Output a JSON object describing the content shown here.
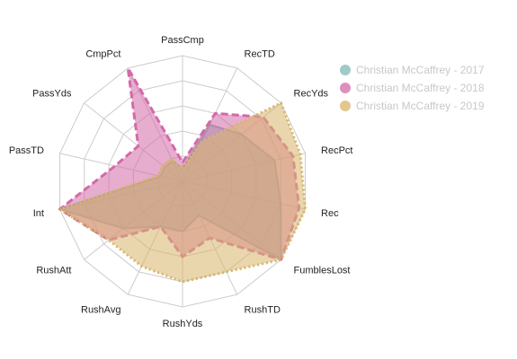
{
  "chart_data": {
    "type": "radar",
    "axes": [
      "PassCmp",
      "RecTD",
      "RecYds",
      "RecPct",
      "Rec",
      "FumblesLost",
      "RushTD",
      "RushYds",
      "RushAvg",
      "RushAtt",
      "Int",
      "PassTD",
      "PassYds",
      "CmpPct"
    ],
    "rmax": 1.0,
    "grid_levels": 5,
    "series": [
      {
        "name": "Christian McCaffrey - 2017",
        "color": "#7fb8b4",
        "fill_opacity": 0.55,
        "line_style": "solid",
        "values": [
          0.1,
          0.5,
          0.6,
          0.75,
          0.8,
          1.0,
          0.3,
          0.4,
          0.4,
          0.6,
          1.0,
          0.18,
          0.18,
          0.18
        ]
      },
      {
        "name": "Christian McCaffrey - 2018",
        "color": "#d36aa8",
        "fill_opacity": 0.55,
        "line_style": "dashed",
        "values": [
          0.15,
          0.6,
          0.82,
          0.9,
          0.95,
          1.0,
          0.5,
          0.6,
          0.4,
          0.75,
          1.0,
          0.55,
          0.45,
          1.0
        ]
      },
      {
        "name": "Christian McCaffrey - 2019",
        "color": "#d8b46a",
        "fill_opacity": 0.55,
        "line_style": "dotted",
        "values": [
          0.1,
          0.35,
          1.0,
          0.96,
          1.0,
          1.0,
          0.8,
          0.8,
          0.75,
          0.75,
          1.0,
          0.2,
          0.2,
          0.2
        ]
      }
    ],
    "legend_position": "top-right",
    "grid": true
  }
}
